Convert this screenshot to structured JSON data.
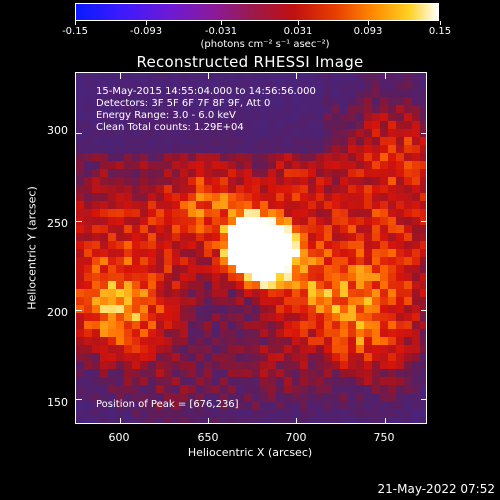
{
  "colorbar": {
    "ticks": [
      "-0.15",
      "-0.093",
      "-0.031",
      "0.031",
      "0.093",
      "0.15"
    ],
    "units": "(photons cm⁻² s⁻¹ asec⁻²)"
  },
  "title": "Reconstructed RHESSI Image",
  "info": {
    "line1": "15-May-2015 14:55:04.000 to 14:56:56.000",
    "line2": "Detectors: 3F 5F 6F 7F 8F 9F, Att 0",
    "line3": "Energy Range: 3.0 - 6.0 keV",
    "line4": "Clean     Total counts: 1.29E+04"
  },
  "peak": "Position of Peak = [676,236]",
  "axes": {
    "xlabel": "Heliocentric X (arcsec)",
    "ylabel": "Heliocentric Y (arcsec)",
    "xticks": [
      "600",
      "650",
      "700",
      "750"
    ],
    "yticks": [
      "300",
      "250",
      "200",
      "150"
    ]
  },
  "timestamp": "21-May-2022 07:52",
  "colors": {
    "background": "#000000",
    "foreground": "#ffffff"
  }
}
